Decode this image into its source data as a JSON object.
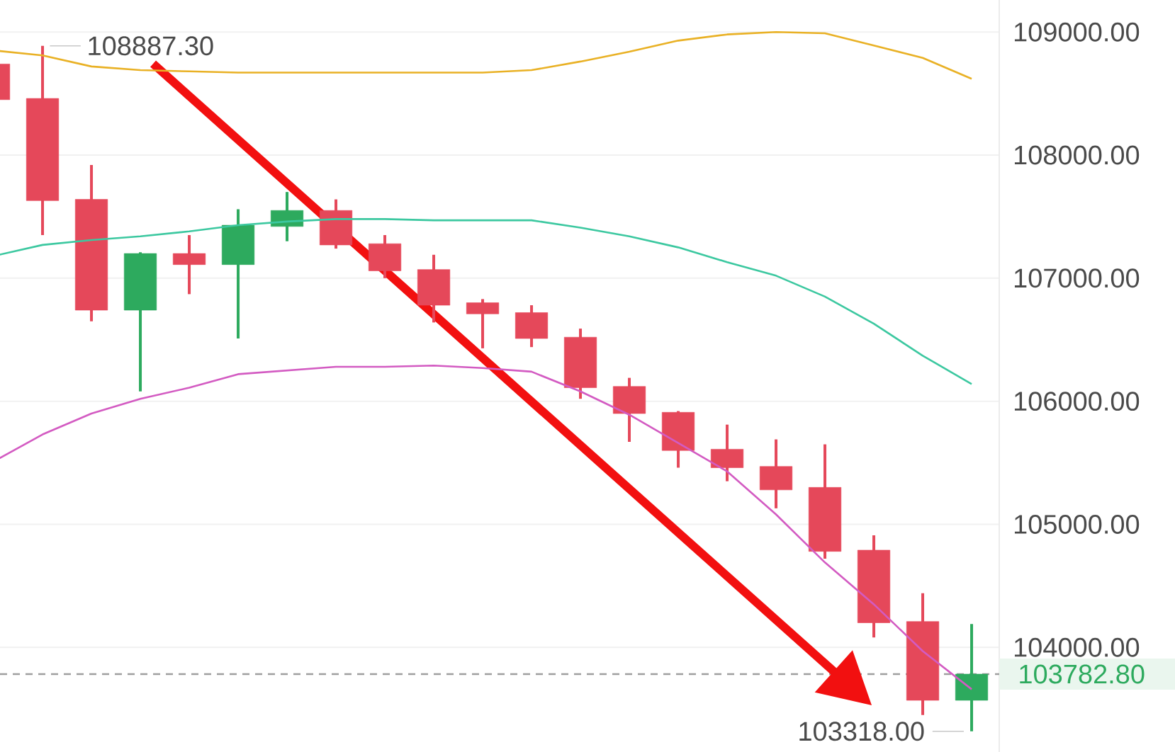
{
  "chart_data": {
    "type": "candlestick",
    "categories": [
      null,
      null,
      null,
      null,
      null,
      null,
      null,
      null,
      null,
      null,
      null,
      null,
      null,
      null,
      null,
      null,
      null,
      null,
      null,
      null,
      null
    ],
    "ohlc": [
      [
        108740,
        108740,
        108450,
        108450
      ],
      [
        108460,
        108887.3,
        107350,
        107630
      ],
      [
        107640,
        107920,
        106650,
        106740
      ],
      [
        106740,
        107210,
        106080,
        107200
      ],
      [
        107200,
        107350,
        106870,
        107110
      ],
      [
        107110,
        107560,
        106510,
        107430
      ],
      [
        107420,
        107700,
        107300,
        107550
      ],
      [
        107550,
        107640,
        107240,
        107270
      ],
      [
        107280,
        107350,
        107000,
        107060
      ],
      [
        107070,
        107190,
        106640,
        106780
      ],
      [
        106800,
        106830,
        106430,
        106710
      ],
      [
        106720,
        106780,
        106440,
        106510
      ],
      [
        106520,
        106590,
        106020,
        106110
      ],
      [
        106120,
        106190,
        105670,
        105900
      ],
      [
        105910,
        105920,
        105460,
        105600
      ],
      [
        105610,
        105810,
        105350,
        105460
      ],
      [
        105470,
        105690,
        105130,
        105280
      ],
      [
        105300,
        105650,
        104720,
        104780
      ],
      [
        104790,
        104910,
        104080,
        104200
      ],
      [
        104210,
        104440,
        103450,
        103570
      ],
      [
        103570,
        104190,
        103318,
        103782.8
      ]
    ],
    "colors": [
      "#e5485a",
      "#e5485a",
      "#e5485a",
      "#2daa5e",
      "#e5485a",
      "#2daa5e",
      "#2daa5e",
      "#e5485a",
      "#e5485a",
      "#e5485a",
      "#e5485a",
      "#e5485a",
      "#e5485a",
      "#e5485a",
      "#e5485a",
      "#e5485a",
      "#e5485a",
      "#e5485a",
      "#e5485a",
      "#e5485a",
      "#2daa5e"
    ],
    "series": [
      {
        "type": "line",
        "color": "#e9b125",
        "values": [
          108850,
          108810,
          108720,
          108690,
          108680,
          108670,
          108670,
          108670,
          108670,
          108670,
          108670,
          108690,
          108760,
          108840,
          108930,
          108980,
          109000,
          108990,
          108890,
          108790,
          108620
        ]
      },
      {
        "type": "line",
        "color": "#3cc8a0",
        "values": [
          107180,
          107270,
          107310,
          107340,
          107380,
          107430,
          107460,
          107480,
          107480,
          107470,
          107470,
          107470,
          107410,
          107340,
          107250,
          107130,
          107020,
          106850,
          106630,
          106370,
          106140
        ]
      },
      {
        "type": "line",
        "color": "#d35bc2",
        "values": [
          105510,
          105730,
          105900,
          106020,
          106110,
          106220,
          106250,
          106280,
          106280,
          106290,
          106270,
          106240,
          106080,
          105890,
          105660,
          105430,
          105080,
          104690,
          104350,
          103970,
          103660
        ]
      }
    ],
    "ylim": [
      103150,
      109260
    ],
    "yticks": [
      {
        "value": 104000,
        "label": "104000.00"
      },
      {
        "value": 105000,
        "label": "105000.00"
      },
      {
        "value": 106000,
        "label": "106000.00"
      },
      {
        "value": 107000,
        "label": "107000.00"
      },
      {
        "value": 108000,
        "label": "108000.00"
      },
      {
        "value": 109000,
        "label": "109000.00"
      }
    ],
    "grid": "y",
    "ref_lines": [
      {
        "axis": "y",
        "value": 103782.8,
        "label": "103782.80",
        "color": "#9e9e9e",
        "line_style": "dashed"
      }
    ],
    "annotations": [
      "108887.30",
      "103318.00"
    ]
  }
}
